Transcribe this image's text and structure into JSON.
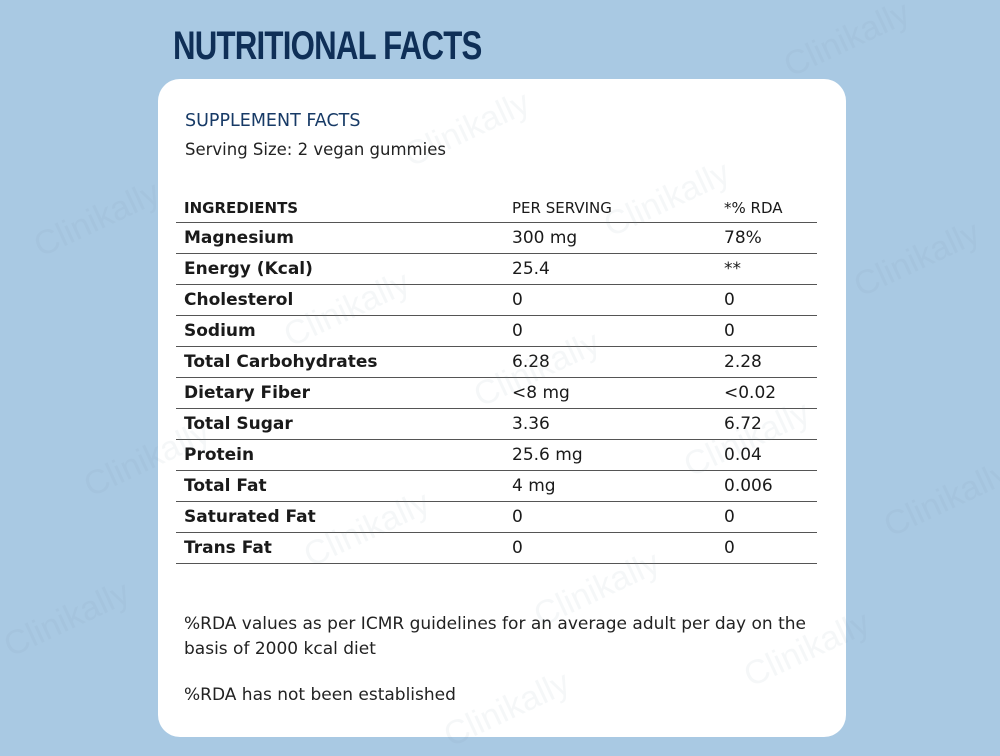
{
  "title": "NUTRITIONAL FACTS",
  "card": {
    "heading": "SUPPLEMENT FACTS",
    "serving": "Serving Size: 2 vegan gummies",
    "table": {
      "headers": [
        "INGREDIENTS",
        "PER SERVING",
        "*% RDA"
      ],
      "rows": [
        [
          "Magnesium",
          "300 mg",
          "78%"
        ],
        [
          "Energy (Kcal)",
          "25.4",
          "**"
        ],
        [
          "Cholesterol",
          "0",
          "0"
        ],
        [
          "Sodium",
          "0",
          "0"
        ],
        [
          "Total Carbohydrates",
          "6.28",
          "2.28"
        ],
        [
          "Dietary Fiber",
          "<8 mg",
          "<0.02"
        ],
        [
          "Total Sugar",
          "3.36",
          "6.72"
        ],
        [
          "Protein",
          "25.6 mg",
          "0.04"
        ],
        [
          "Total Fat",
          "4 mg",
          "0.006"
        ],
        [
          "Saturated Fat",
          "0",
          "0"
        ],
        [
          "Trans Fat",
          "0",
          "0"
        ]
      ]
    },
    "note1": "%RDA values as per ICMR guidelines for an average adult per day on the basis of 2000 kcal diet",
    "note2": "%RDA has not been established"
  },
  "watermark": "Clinikally",
  "colors": {
    "background": "#a9c9e3",
    "title": "#0f2f57",
    "card": "#ffffff"
  }
}
